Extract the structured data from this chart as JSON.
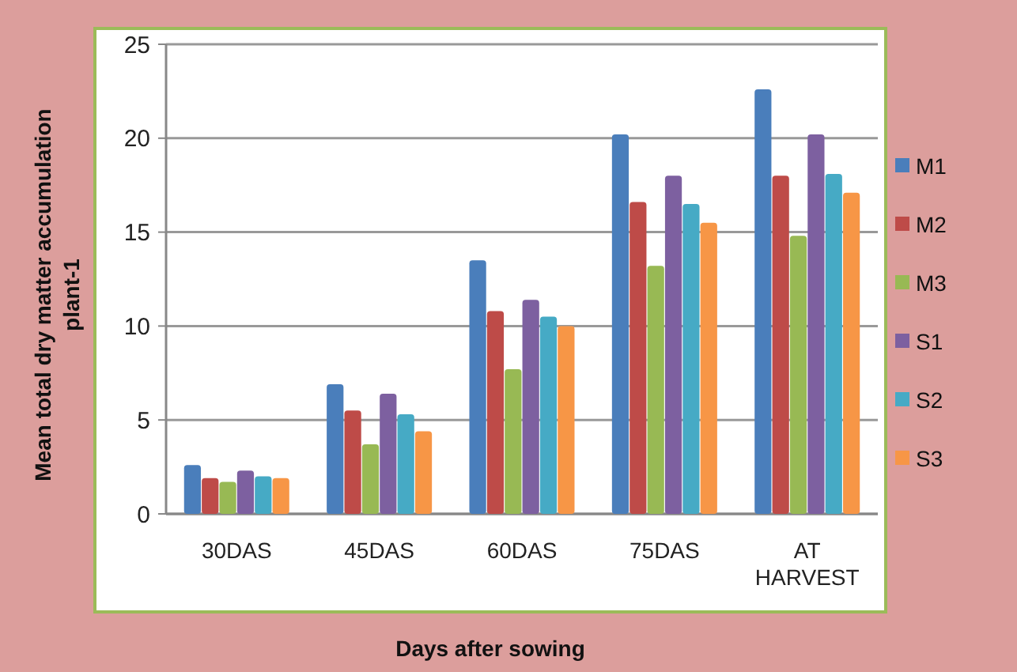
{
  "chart_data": {
    "type": "bar",
    "xlabel": "Days after sowing",
    "ylabel": "Mean total dry matter accumulation plant-1",
    "categories": [
      "30DAS",
      "45DAS",
      "60DAS",
      "75DAS",
      "AT HARVEST"
    ],
    "series": [
      {
        "name": "M1",
        "color": "#4a7ebb",
        "values": [
          2.6,
          6.9,
          13.5,
          20.2,
          22.6
        ]
      },
      {
        "name": "M2",
        "color": "#be4b48",
        "values": [
          1.9,
          5.5,
          10.8,
          16.6,
          18.0
        ]
      },
      {
        "name": "M3",
        "color": "#98b954",
        "values": [
          1.7,
          3.7,
          7.7,
          13.2,
          14.8
        ]
      },
      {
        "name": "S1",
        "color": "#7d60a0",
        "values": [
          2.3,
          6.4,
          11.4,
          18.0,
          20.2
        ]
      },
      {
        "name": "S2",
        "color": "#46aac5",
        "values": [
          2.0,
          5.3,
          10.5,
          16.5,
          18.1
        ]
      },
      {
        "name": "S3",
        "color": "#f79646",
        "values": [
          1.9,
          4.4,
          10.0,
          15.5,
          17.1
        ]
      }
    ],
    "ylim": [
      0,
      25
    ],
    "yticks": [
      0,
      5,
      10,
      15,
      20,
      25
    ],
    "grid": "y",
    "legend": "right"
  }
}
